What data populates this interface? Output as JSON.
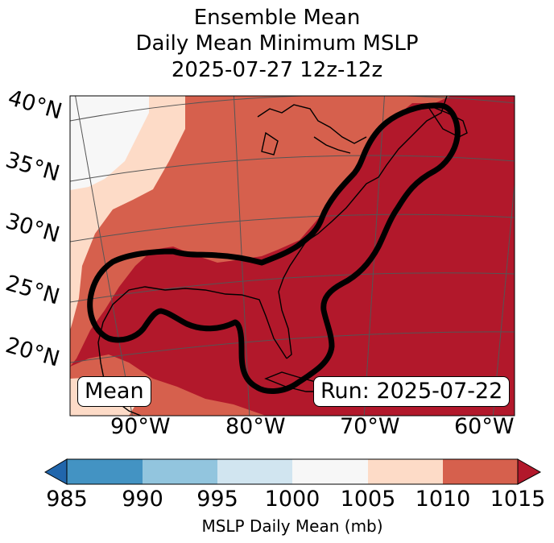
{
  "title": {
    "line1": "Ensemble Mean",
    "line2": "Daily Mean Minimum MSLP",
    "line3": "2025-07-27 12z-12z"
  },
  "map": {
    "lat_labels": [
      "40°N",
      "35°N",
      "30°N",
      "25°N",
      "20°N"
    ],
    "lon_labels": [
      "90°W",
      "80°W",
      "70°W",
      "60°W"
    ],
    "mean_box": "Mean",
    "run_box": "Run: 2025-07-22",
    "fill_colors": [
      "#f7f7f7",
      "#fddbc7",
      "#d6604d",
      "#b2182b"
    ],
    "contour_color": "#000000"
  },
  "colorbar": {
    "ticks": [
      "985",
      "990",
      "995",
      "1000",
      "1005",
      "1010",
      "1015"
    ],
    "colors": [
      "#2166ac",
      "#4393c3",
      "#92c5de",
      "#d1e5f0",
      "#f7f7f7",
      "#fddbc7",
      "#d6604d",
      "#b2182b"
    ],
    "label": "MSLP Daily Mean (mb)"
  }
}
